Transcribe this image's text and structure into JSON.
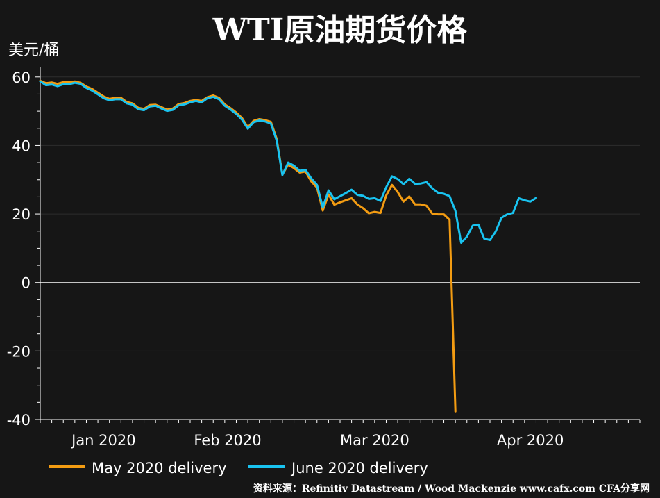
{
  "chart_data": {
    "type": "line",
    "title": "WTI原油期货价格",
    "ylabel": "美元/桶",
    "xlabel": "",
    "ylim": [
      -40,
      63
    ],
    "xlim": [
      0,
      104
    ],
    "grid": true,
    "legend_position": "bottom",
    "yticks": [
      60,
      40,
      20,
      0,
      -20,
      -40
    ],
    "xticks": [
      {
        "label": "Jan 2020",
        "x": 11
      },
      {
        "label": "Feb 2020",
        "x": 32.5
      },
      {
        "label": "Mar 2020",
        "x": 58
      },
      {
        "label": "Apr 2020",
        "x": 85
      }
    ],
    "series": [
      {
        "name": "May 2020 delivery",
        "color": "#f39c12",
        "points": [
          [
            0,
            58.9
          ],
          [
            1,
            58.2
          ],
          [
            2,
            58.4
          ],
          [
            3,
            58.0
          ],
          [
            4,
            58.5
          ],
          [
            5,
            58.5
          ],
          [
            6,
            58.7
          ],
          [
            7,
            58.3
          ],
          [
            8,
            57.2
          ],
          [
            9,
            56.5
          ],
          [
            10,
            55.4
          ],
          [
            11,
            54.3
          ],
          [
            12,
            53.6
          ],
          [
            13,
            53.9
          ],
          [
            14,
            53.9
          ],
          [
            15,
            52.7
          ],
          [
            16,
            52.3
          ],
          [
            17,
            51.0
          ],
          [
            18,
            50.7
          ],
          [
            19,
            51.8
          ],
          [
            20,
            51.9
          ],
          [
            21,
            51.2
          ],
          [
            22,
            50.5
          ],
          [
            23,
            50.8
          ],
          [
            24,
            52.1
          ],
          [
            25,
            52.4
          ],
          [
            26,
            53.0
          ],
          [
            27,
            53.3
          ],
          [
            28,
            53.0
          ],
          [
            29,
            54.1
          ],
          [
            30,
            54.6
          ],
          [
            31,
            53.9
          ],
          [
            32,
            52.0
          ],
          [
            33,
            50.9
          ],
          [
            34,
            49.6
          ],
          [
            35,
            48.0
          ],
          [
            36,
            45.3
          ],
          [
            37,
            47.2
          ],
          [
            38,
            47.7
          ],
          [
            39,
            47.4
          ],
          [
            40,
            46.9
          ],
          [
            41,
            42.0
          ],
          [
            42,
            31.5
          ],
          [
            43,
            34.4
          ],
          [
            44,
            33.4
          ],
          [
            45,
            32.1
          ],
          [
            46,
            32.4
          ],
          [
            47,
            29.5
          ],
          [
            48,
            27.7
          ],
          [
            49,
            21.0
          ],
          [
            50,
            25.7
          ],
          [
            51,
            22.7
          ],
          [
            52,
            23.4
          ],
          [
            53,
            24.0
          ],
          [
            54,
            24.6
          ],
          [
            55,
            22.8
          ],
          [
            56,
            21.7
          ],
          [
            57,
            20.2
          ],
          [
            58,
            20.6
          ],
          [
            59,
            20.3
          ],
          [
            60,
            25.4
          ],
          [
            61,
            28.5
          ],
          [
            62,
            26.4
          ],
          [
            63,
            23.6
          ],
          [
            64,
            25.1
          ],
          [
            65,
            22.8
          ],
          [
            66,
            22.8
          ],
          [
            67,
            22.4
          ],
          [
            68,
            20.1
          ],
          [
            69,
            19.9
          ],
          [
            70,
            19.9
          ],
          [
            71,
            18.3
          ],
          [
            72,
            -37.6
          ]
        ]
      },
      {
        "name": "June 2020 delivery",
        "color": "#19c3f0",
        "points": [
          [
            0,
            58.7
          ],
          [
            1,
            57.6
          ],
          [
            2,
            57.8
          ],
          [
            3,
            57.3
          ],
          [
            4,
            57.9
          ],
          [
            5,
            57.9
          ],
          [
            6,
            58.3
          ],
          [
            7,
            58.0
          ],
          [
            8,
            56.8
          ],
          [
            9,
            56.0
          ],
          [
            10,
            54.9
          ],
          [
            11,
            53.8
          ],
          [
            12,
            53.2
          ],
          [
            13,
            53.5
          ],
          [
            14,
            53.5
          ],
          [
            15,
            52.3
          ],
          [
            16,
            51.9
          ],
          [
            17,
            50.6
          ],
          [
            18,
            50.3
          ],
          [
            19,
            51.4
          ],
          [
            20,
            51.6
          ],
          [
            21,
            50.8
          ],
          [
            22,
            50.1
          ],
          [
            23,
            50.4
          ],
          [
            24,
            51.7
          ],
          [
            25,
            52.0
          ],
          [
            26,
            52.6
          ],
          [
            27,
            53.0
          ],
          [
            28,
            52.6
          ],
          [
            29,
            53.8
          ],
          [
            30,
            54.2
          ],
          [
            31,
            53.5
          ],
          [
            32,
            51.6
          ],
          [
            33,
            50.5
          ],
          [
            34,
            49.2
          ],
          [
            35,
            47.5
          ],
          [
            36,
            44.9
          ],
          [
            37,
            46.8
          ],
          [
            38,
            47.3
          ],
          [
            39,
            47.0
          ],
          [
            40,
            46.4
          ],
          [
            41,
            41.5
          ],
          [
            42,
            31.4
          ],
          [
            43,
            35.0
          ],
          [
            44,
            34.1
          ],
          [
            45,
            32.6
          ],
          [
            46,
            32.9
          ],
          [
            47,
            30.4
          ],
          [
            48,
            28.5
          ],
          [
            49,
            21.9
          ],
          [
            50,
            26.9
          ],
          [
            51,
            24.3
          ],
          [
            52,
            25.2
          ],
          [
            53,
            26.1
          ],
          [
            54,
            27.1
          ],
          [
            55,
            25.6
          ],
          [
            56,
            25.3
          ],
          [
            57,
            24.4
          ],
          [
            58,
            24.6
          ],
          [
            59,
            23.8
          ],
          [
            60,
            27.8
          ],
          [
            61,
            31.0
          ],
          [
            62,
            30.2
          ],
          [
            63,
            28.7
          ],
          [
            64,
            30.3
          ],
          [
            65,
            28.8
          ],
          [
            66,
            28.9
          ],
          [
            67,
            29.3
          ],
          [
            68,
            27.5
          ],
          [
            69,
            26.2
          ],
          [
            70,
            25.9
          ],
          [
            71,
            25.2
          ],
          [
            72,
            20.9
          ],
          [
            73,
            11.6
          ],
          [
            74,
            13.4
          ],
          [
            75,
            16.6
          ],
          [
            76,
            16.9
          ],
          [
            77,
            12.8
          ],
          [
            78,
            12.4
          ],
          [
            79,
            14.9
          ],
          [
            80,
            18.9
          ],
          [
            81,
            19.9
          ],
          [
            82,
            20.3
          ],
          [
            83,
            24.6
          ],
          [
            84,
            24.0
          ],
          [
            85,
            23.6
          ],
          [
            86,
            24.7
          ]
        ]
      }
    ],
    "source": "资料来源：Refinitiv Datastream / Wood Mackenzie www.cafx.com CFA分享网"
  }
}
